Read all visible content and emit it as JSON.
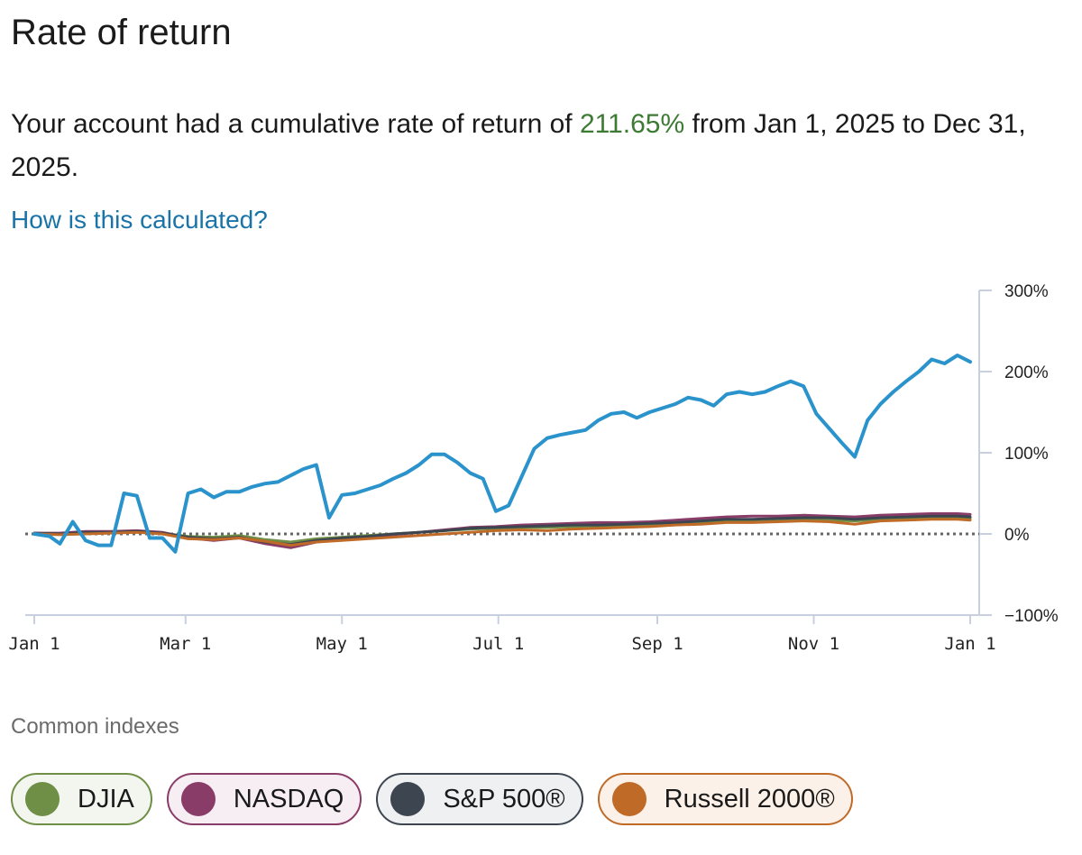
{
  "header": {
    "title": "Rate of return"
  },
  "summary": {
    "prefix": "Your account had a cumulative rate of return of ",
    "rate": "211.65%",
    "suffix": " from Jan 1, 2025 to Dec 31, 2025."
  },
  "calc_link": "How is this calculated?",
  "indexes": {
    "label": "Common indexes",
    "items": [
      {
        "name": "DJIA",
        "color": "#6e8f45",
        "border": "#6e8f45",
        "bg": "#f2f6ee"
      },
      {
        "name": "NASDAQ",
        "color": "#8a3c68",
        "border": "#8a3c68",
        "bg": "#f7eef3"
      },
      {
        "name": "S&P 500®",
        "color": "#3d4550",
        "border": "#3d4550",
        "bg": "#eff0f2"
      },
      {
        "name": "Russell 2000®",
        "color": "#c06a28",
        "border": "#c06a28",
        "bg": "#fcf1e8"
      }
    ]
  },
  "chart_data": {
    "type": "line",
    "title": "",
    "xlabel": "",
    "ylabel": "",
    "ylim": [
      -100,
      300
    ],
    "yticks": [
      300,
      200,
      100,
      0,
      -100
    ],
    "ytick_labels": [
      "300%",
      "200%",
      "100%",
      "0%",
      "−100%"
    ],
    "xlim": [
      0,
      365
    ],
    "xticks": [
      0,
      59,
      120,
      181,
      243,
      304,
      365
    ],
    "xtick_labels": [
      "Jan 1",
      "Mar 1",
      "May 1",
      "Jul 1",
      "Sep 1",
      "Nov 1",
      "Jan 1"
    ],
    "reference_line": 0,
    "series": [
      {
        "name": "Account",
        "color": "#2b93cc",
        "x": [
          0,
          6,
          10,
          15,
          20,
          25,
          30,
          35,
          40,
          45,
          50,
          55,
          60,
          65,
          70,
          75,
          80,
          85,
          90,
          95,
          100,
          105,
          110,
          115,
          120,
          125,
          130,
          135,
          140,
          145,
          150,
          155,
          160,
          165,
          170,
          175,
          180,
          185,
          190,
          195,
          200,
          205,
          210,
          215,
          220,
          225,
          230,
          235,
          240,
          245,
          250,
          255,
          260,
          265,
          270,
          275,
          280,
          285,
          290,
          295,
          300,
          305,
          310,
          315,
          320,
          325,
          330,
          335,
          340,
          345,
          350,
          355,
          360,
          365
        ],
        "y": [
          0,
          -3,
          -12,
          15,
          -8,
          -14,
          -14,
          50,
          47,
          -5,
          -5,
          -22,
          50,
          55,
          45,
          52,
          52,
          58,
          62,
          64,
          72,
          80,
          85,
          20,
          48,
          50,
          55,
          60,
          68,
          75,
          85,
          98,
          98,
          88,
          75,
          68,
          28,
          35,
          70,
          105,
          118,
          122,
          125,
          128,
          140,
          148,
          150,
          143,
          150,
          155,
          160,
          168,
          165,
          158,
          172,
          175,
          172,
          175,
          182,
          188,
          182,
          148,
          130,
          112,
          95,
          140,
          160,
          175,
          188,
          200,
          215,
          210,
          220,
          212
        ]
      },
      {
        "name": "DJIA",
        "color": "#6e8f45",
        "x": [
          0,
          10,
          20,
          30,
          40,
          50,
          60,
          70,
          80,
          90,
          100,
          110,
          120,
          130,
          140,
          150,
          160,
          170,
          180,
          190,
          200,
          210,
          220,
          230,
          240,
          250,
          260,
          270,
          280,
          290,
          300,
          310,
          320,
          330,
          340,
          350,
          360,
          365
        ],
        "y": [
          1,
          0,
          2,
          2,
          3,
          1,
          -3,
          -4,
          -2,
          -7,
          -10,
          -6,
          -4,
          -2,
          0,
          2,
          4,
          6,
          7,
          8,
          8,
          9,
          10,
          10,
          11,
          12,
          14,
          15,
          15,
          16,
          17,
          17,
          16,
          18,
          19,
          20,
          20,
          19
        ]
      },
      {
        "name": "NASDAQ",
        "color": "#8a3c68",
        "x": [
          0,
          10,
          20,
          30,
          40,
          50,
          60,
          70,
          80,
          90,
          100,
          110,
          120,
          130,
          140,
          150,
          160,
          170,
          180,
          190,
          200,
          210,
          220,
          230,
          240,
          250,
          260,
          270,
          280,
          290,
          300,
          310,
          320,
          330,
          340,
          350,
          360,
          365
        ],
        "y": [
          1,
          1,
          3,
          3,
          4,
          2,
          -5,
          -8,
          -5,
          -12,
          -17,
          -10,
          -7,
          -4,
          -1,
          2,
          5,
          8,
          9,
          11,
          12,
          13,
          14,
          14,
          15,
          17,
          19,
          21,
          22,
          22,
          23,
          22,
          21,
          23,
          24,
          25,
          25,
          24
        ]
      },
      {
        "name": "S&P 500®",
        "color": "#3d4550",
        "x": [
          0,
          10,
          20,
          30,
          40,
          50,
          60,
          70,
          80,
          90,
          100,
          110,
          120,
          130,
          140,
          150,
          160,
          170,
          180,
          190,
          200,
          210,
          220,
          230,
          240,
          250,
          260,
          270,
          280,
          290,
          300,
          310,
          320,
          330,
          340,
          350,
          360,
          365
        ],
        "y": [
          1,
          0,
          2,
          2,
          3,
          1,
          -4,
          -6,
          -4,
          -10,
          -13,
          -8,
          -5,
          -3,
          0,
          2,
          4,
          7,
          8,
          9,
          10,
          11,
          11,
          12,
          13,
          14,
          16,
          18,
          18,
          19,
          20,
          20,
          18,
          20,
          21,
          22,
          22,
          21
        ]
      },
      {
        "name": "Russell 2000®",
        "color": "#c06a28",
        "x": [
          0,
          10,
          20,
          30,
          40,
          50,
          60,
          70,
          80,
          90,
          100,
          110,
          120,
          130,
          140,
          150,
          160,
          170,
          180,
          190,
          200,
          210,
          220,
          230,
          240,
          250,
          260,
          270,
          280,
          290,
          300,
          310,
          320,
          330,
          340,
          350,
          360,
          365
        ],
        "y": [
          0,
          -1,
          0,
          1,
          2,
          0,
          -6,
          -7,
          -5,
          -9,
          -14,
          -10,
          -8,
          -6,
          -4,
          -2,
          0,
          2,
          4,
          5,
          4,
          6,
          7,
          8,
          9,
          11,
          12,
          14,
          14,
          15,
          16,
          15,
          12,
          16,
          17,
          18,
          18,
          17
        ]
      }
    ]
  }
}
